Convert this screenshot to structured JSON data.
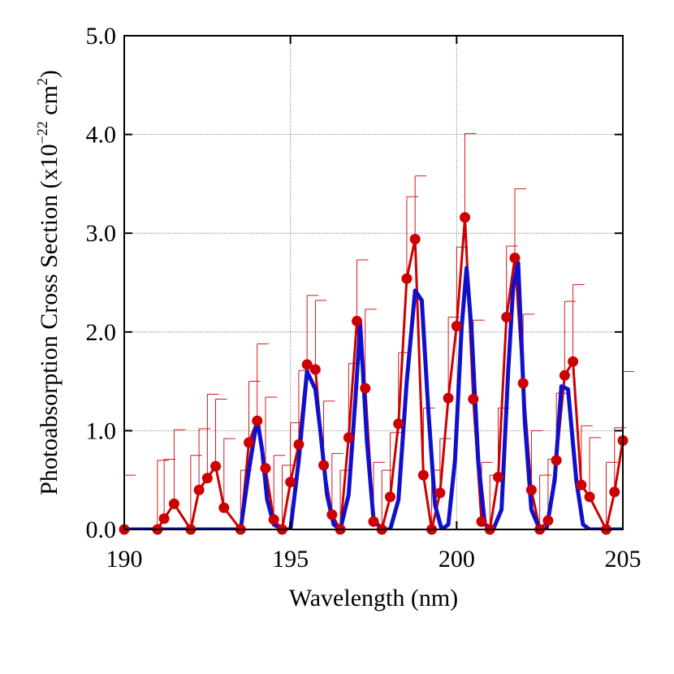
{
  "chart_data": {
    "type": "line",
    "title": "",
    "xlabel": "Wavelength (nm)",
    "ylabel": {
      "main": "Photoabsorption Cross Section (x10",
      "exp1": "−22",
      "mid": " cm",
      "exp2": "2",
      "end": ")"
    },
    "xlim": [
      190,
      205
    ],
    "ylim": [
      0,
      5.0
    ],
    "x_ticks": [
      190,
      195,
      200,
      205
    ],
    "y_ticks": [
      0.0,
      1.0,
      2.0,
      3.0,
      4.0,
      5.0
    ],
    "x_tick_labels": [
      "190",
      "195",
      "200",
      "205"
    ],
    "y_tick_labels": [
      "0.0",
      "1.0",
      "2.0",
      "3.0",
      "4.0",
      "5.0"
    ],
    "grid": true,
    "colors": {
      "measured": "#cc0000",
      "calculated": "#1010cc"
    },
    "series": [
      {
        "role": "measured",
        "marker": "circle",
        "error_bars": true,
        "x": [
          190.0,
          191.0,
          191.2,
          191.5,
          192.0,
          192.25,
          192.5,
          192.75,
          193.0,
          193.5,
          193.75,
          194.0,
          194.25,
          194.5,
          194.75,
          195.0,
          195.25,
          195.5,
          195.75,
          196.0,
          196.25,
          196.5,
          196.75,
          197.0,
          197.25,
          197.5,
          197.75,
          198.0,
          198.25,
          198.5,
          198.75,
          199.0,
          199.25,
          199.5,
          199.75,
          200.0,
          200.25,
          200.5,
          200.75,
          201.0,
          201.25,
          201.5,
          201.75,
          202.0,
          202.25,
          202.5,
          202.75,
          203.0,
          203.25,
          203.5,
          203.75,
          204.0,
          204.5,
          204.75,
          205.0
        ],
        "y": [
          0.0,
          0.0,
          0.11,
          0.26,
          0.0,
          0.4,
          0.52,
          0.64,
          0.22,
          0.0,
          0.88,
          1.1,
          0.62,
          0.1,
          0.0,
          0.48,
          0.86,
          1.67,
          1.62,
          0.65,
          0.15,
          0.0,
          0.93,
          2.11,
          1.43,
          0.08,
          0.0,
          0.33,
          1.07,
          2.54,
          2.94,
          0.55,
          0.0,
          0.37,
          1.33,
          2.06,
          3.16,
          1.32,
          0.08,
          0.0,
          0.53,
          2.15,
          2.75,
          1.48,
          0.4,
          0.0,
          0.09,
          0.7,
          1.56,
          1.7,
          0.45,
          0.33,
          0.0,
          0.38,
          0.9
        ],
        "err_up": [
          0.55,
          0.7,
          0.6,
          0.75,
          0.75,
          0.62,
          0.85,
          0.68,
          0.7,
          0.6,
          0.62,
          0.78,
          0.72,
          0.65,
          0.65,
          0.6,
          0.75,
          0.7,
          0.7,
          0.65,
          0.62,
          0.6,
          0.75,
          0.62,
          0.8,
          0.6,
          0.6,
          0.65,
          0.72,
          0.83,
          0.64,
          0.68,
          0.6,
          0.55,
          0.82,
          0.8,
          0.85,
          0.8,
          0.6,
          0.55,
          0.7,
          0.72,
          0.7,
          0.7,
          0.6,
          0.55,
          0.62,
          0.68,
          0.75,
          0.78,
          0.6,
          0.6,
          0.68,
          0.65,
          0.7
        ]
      },
      {
        "role": "calculated",
        "marker": "none",
        "x": [
          190.0,
          193.5,
          193.75,
          194.0,
          194.15,
          194.3,
          194.5,
          194.75,
          195.0,
          195.25,
          195.5,
          195.75,
          195.9,
          196.1,
          196.3,
          196.5,
          196.75,
          196.95,
          197.1,
          197.3,
          197.5,
          197.75,
          198.0,
          198.25,
          198.5,
          198.75,
          198.95,
          199.15,
          199.35,
          199.55,
          199.75,
          199.95,
          200.15,
          200.3,
          200.45,
          200.65,
          200.85,
          201.1,
          201.35,
          201.55,
          201.7,
          201.85,
          202.05,
          202.25,
          202.5,
          202.7,
          202.95,
          203.15,
          203.35,
          203.6,
          203.8,
          204.0,
          204.25,
          205.0
        ],
        "y": [
          0.0,
          0.0,
          0.6,
          1.12,
          0.8,
          0.3,
          0.05,
          0.0,
          0.0,
          0.7,
          1.6,
          1.42,
          1.0,
          0.35,
          0.05,
          0.0,
          0.35,
          1.3,
          2.08,
          0.9,
          0.1,
          0.0,
          0.0,
          0.3,
          1.5,
          2.42,
          2.32,
          1.2,
          0.25,
          0.0,
          0.05,
          0.7,
          2.05,
          2.65,
          2.0,
          0.7,
          0.05,
          0.0,
          0.2,
          1.6,
          2.45,
          2.7,
          1.1,
          0.2,
          0.0,
          0.0,
          0.5,
          1.45,
          1.42,
          0.5,
          0.05,
          0.0,
          0.0,
          0.0
        ]
      }
    ]
  }
}
